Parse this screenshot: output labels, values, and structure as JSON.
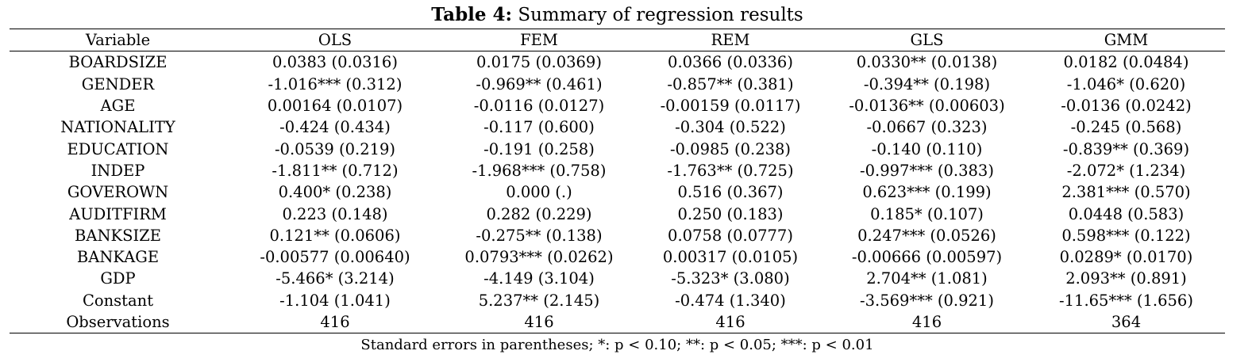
{
  "caption": {
    "label": "Table 4:",
    "text": " Summary of regression results"
  },
  "table": {
    "headers": [
      "Variable",
      "OLS",
      "FEM",
      "REM",
      "GLS",
      "GMM"
    ],
    "rows": [
      [
        "BOARDSIZE",
        "0.0383 (0.0316)",
        "0.0175 (0.0369)",
        "0.0366 (0.0336)",
        "0.0330** (0.0138)",
        "0.0182 (0.0484)"
      ],
      [
        "GENDER",
        "-1.016*** (0.312)",
        "-0.969** (0.461)",
        "-0.857** (0.381)",
        "-0.394** (0.198)",
        "-1.046* (0.620)"
      ],
      [
        "AGE",
        "0.00164 (0.0107)",
        "-0.0116 (0.0127)",
        "-0.00159 (0.0117)",
        "-0.0136** (0.00603)",
        "-0.0136 (0.0242)"
      ],
      [
        "NATIONALITY",
        "-0.424 (0.434)",
        "-0.117 (0.600)",
        "-0.304 (0.522)",
        "-0.0667 (0.323)",
        "-0.245 (0.568)"
      ],
      [
        "EDUCATION",
        "-0.0539 (0.219)",
        "-0.191 (0.258)",
        "-0.0985 (0.238)",
        "-0.140 (0.110)",
        "-0.839** (0.369)"
      ],
      [
        "INDEP",
        "-1.811** (0.712)",
        "-1.968*** (0.758)",
        "-1.763** (0.725)",
        "-0.997*** (0.383)",
        "-2.072* (1.234)"
      ],
      [
        "GOVEROWN",
        "0.400* (0.238)",
        "0.000 (.)",
        "0.516 (0.367)",
        "0.623*** (0.199)",
        "2.381*** (0.570)"
      ],
      [
        "AUDITFIRM",
        "0.223 (0.148)",
        "0.282 (0.229)",
        "0.250 (0.183)",
        "0.185* (0.107)",
        "0.0448 (0.583)"
      ],
      [
        "BANKSIZE",
        "0.121** (0.0606)",
        "-0.275** (0.138)",
        "0.0758 (0.0777)",
        "0.247*** (0.0526)",
        "0.598*** (0.122)"
      ],
      [
        "BANKAGE",
        "-0.00577 (0.00640)",
        "0.0793*** (0.0262)",
        "0.00317 (0.0105)",
        "-0.00666 (0.00597)",
        "0.0289* (0.0170)"
      ],
      [
        "GDP",
        "-5.466* (3.214)",
        "-4.149 (3.104)",
        "-5.323* (3.080)",
        "2.704** (1.081)",
        "2.093** (0.891)"
      ],
      [
        "Constant",
        "-1.104 (1.041)",
        "5.237** (2.145)",
        "-0.474 (1.340)",
        "-3.569*** (0.921)",
        "-11.65*** (1.656)"
      ],
      [
        "Observations",
        "416",
        "416",
        "416",
        "416",
        "364"
      ]
    ]
  },
  "note": "Standard errors in parentheses; *: p < 0.10; **: p < 0.05; ***: p < 0.01"
}
